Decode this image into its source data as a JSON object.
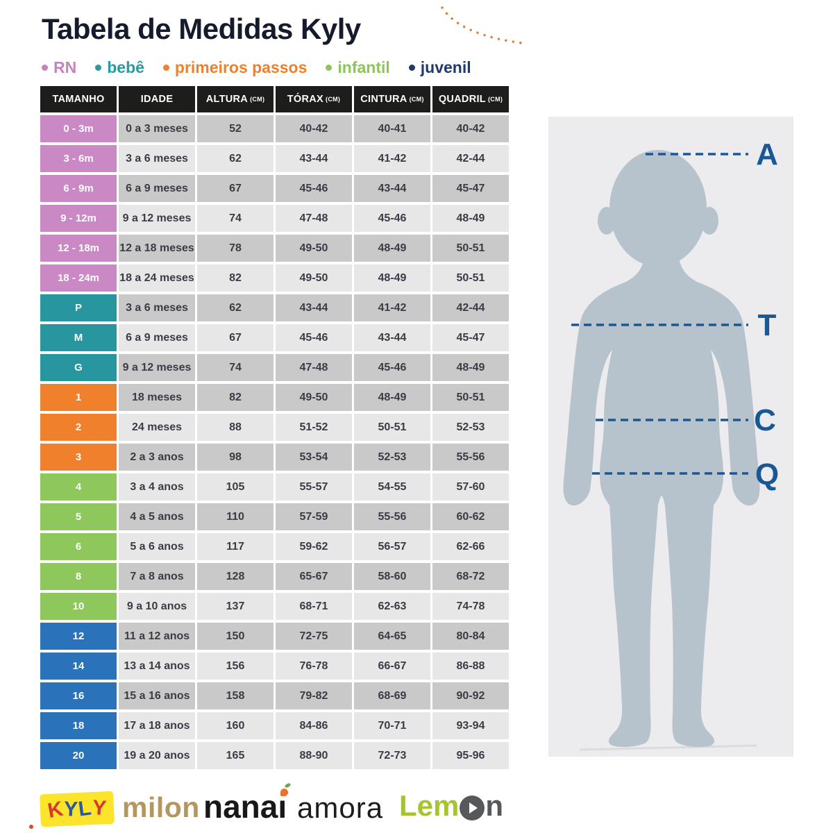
{
  "title": "Tabela de Medidas Kyly",
  "legend": [
    {
      "label": "RN",
      "color": "#c584bf"
    },
    {
      "label": "bebê",
      "color": "#2b99a2"
    },
    {
      "label": "primeiros passos",
      "color": "#f0802b"
    },
    {
      "label": "infantil",
      "color": "#8cc656"
    },
    {
      "label": "juvenil",
      "color": "#1d3a6b"
    }
  ],
  "table": {
    "headers": [
      {
        "label": "TAMANHO",
        "unit": ""
      },
      {
        "label": "IDADE",
        "unit": ""
      },
      {
        "label": "ALTURA",
        "unit": "(CM)"
      },
      {
        "label": "TÓRAX",
        "unit": "(CM)"
      },
      {
        "label": "CINTURA",
        "unit": "(CM)"
      },
      {
        "label": "QUADRIL",
        "unit": "(CM)"
      }
    ],
    "group_colors": {
      "rn": "#ca89c4",
      "bebe": "#27969f",
      "pp": "#f0802b",
      "infantil": "#8ec75b",
      "juvenil": "#2a73ba"
    },
    "rows": [
      {
        "size": "0 - 3m",
        "age": "0 a 3 meses",
        "altura": "52",
        "torax": "40-42",
        "cintura": "40-41",
        "quadril": "40-42",
        "group": "rn",
        "shade": "dark"
      },
      {
        "size": "3 - 6m",
        "age": "3 a 6 meses",
        "altura": "62",
        "torax": "43-44",
        "cintura": "41-42",
        "quadril": "42-44",
        "group": "rn",
        "shade": "light"
      },
      {
        "size": "6 - 9m",
        "age": "6 a 9 meses",
        "altura": "67",
        "torax": "45-46",
        "cintura": "43-44",
        "quadril": "45-47",
        "group": "rn",
        "shade": "dark"
      },
      {
        "size": "9 - 12m",
        "age": "9 a 12 meses",
        "altura": "74",
        "torax": "47-48",
        "cintura": "45-46",
        "quadril": "48-49",
        "group": "rn",
        "shade": "light"
      },
      {
        "size": "12 - 18m",
        "age": "12 a 18 meses",
        "altura": "78",
        "torax": "49-50",
        "cintura": "48-49",
        "quadril": "50-51",
        "group": "rn",
        "shade": "dark"
      },
      {
        "size": "18 - 24m",
        "age": "18 a 24 meses",
        "altura": "82",
        "torax": "49-50",
        "cintura": "48-49",
        "quadril": "50-51",
        "group": "rn",
        "shade": "light"
      },
      {
        "size": "P",
        "age": "3 a 6 meses",
        "altura": "62",
        "torax": "43-44",
        "cintura": "41-42",
        "quadril": "42-44",
        "group": "bebe",
        "shade": "dark"
      },
      {
        "size": "M",
        "age": "6 a 9 meses",
        "altura": "67",
        "torax": "45-46",
        "cintura": "43-44",
        "quadril": "45-47",
        "group": "bebe",
        "shade": "light"
      },
      {
        "size": "G",
        "age": "9 a 12 meses",
        "altura": "74",
        "torax": "47-48",
        "cintura": "45-46",
        "quadril": "48-49",
        "group": "bebe",
        "shade": "dark"
      },
      {
        "size": "1",
        "age": "18 meses",
        "altura": "82",
        "torax": "49-50",
        "cintura": "48-49",
        "quadril": "50-51",
        "group": "pp",
        "shade": "dark"
      },
      {
        "size": "2",
        "age": "24 meses",
        "altura": "88",
        "torax": "51-52",
        "cintura": "50-51",
        "quadril": "52-53",
        "group": "pp",
        "shade": "light"
      },
      {
        "size": "3",
        "age": "2 a 3 anos",
        "altura": "98",
        "torax": "53-54",
        "cintura": "52-53",
        "quadril": "55-56",
        "group": "pp",
        "shade": "dark"
      },
      {
        "size": "4",
        "age": "3 a 4 anos",
        "altura": "105",
        "torax": "55-57",
        "cintura": "54-55",
        "quadril": "57-60",
        "group": "infantil",
        "shade": "light"
      },
      {
        "size": "5",
        "age": "4 a 5 anos",
        "altura": "110",
        "torax": "57-59",
        "cintura": "55-56",
        "quadril": "60-62",
        "group": "infantil",
        "shade": "dark"
      },
      {
        "size": "6",
        "age": "5 a 6 anos",
        "altura": "117",
        "torax": "59-62",
        "cintura": "56-57",
        "quadril": "62-66",
        "group": "infantil",
        "shade": "light"
      },
      {
        "size": "8",
        "age": "7 a 8 anos",
        "altura": "128",
        "torax": "65-67",
        "cintura": "58-60",
        "quadril": "68-72",
        "group": "infantil",
        "shade": "dark"
      },
      {
        "size": "10",
        "age": "9 a 10 anos",
        "altura": "137",
        "torax": "68-71",
        "cintura": "62-63",
        "quadril": "74-78",
        "group": "infantil",
        "shade": "light"
      },
      {
        "size": "12",
        "age": "11 a 12 anos",
        "altura": "150",
        "torax": "72-75",
        "cintura": "64-65",
        "quadril": "80-84",
        "group": "juvenil",
        "shade": "dark"
      },
      {
        "size": "14",
        "age": "13 a 14 anos",
        "altura": "156",
        "torax": "76-78",
        "cintura": "66-67",
        "quadril": "86-88",
        "group": "juvenil",
        "shade": "light"
      },
      {
        "size": "16",
        "age": "15 a 16 anos",
        "altura": "158",
        "torax": "79-82",
        "cintura": "68-69",
        "quadril": "90-92",
        "group": "juvenil",
        "shade": "dark"
      },
      {
        "size": "18",
        "age": "17 a 18 anos",
        "altura": "160",
        "torax": "84-86",
        "cintura": "70-71",
        "quadril": "93-94",
        "group": "juvenil",
        "shade": "light"
      },
      {
        "size": "20",
        "age": "19 a 20 anos",
        "altura": "165",
        "torax": "88-90",
        "cintura": "72-73",
        "quadril": "95-96",
        "group": "juvenil",
        "shade": "light"
      }
    ]
  },
  "figure": {
    "labels": [
      "A",
      "T",
      "C",
      "Q"
    ],
    "panel_bg": "#ececee",
    "body_color": "#b7c3cc",
    "line_color": "#1a5795",
    "ground_color": "#d9dbdc"
  },
  "brands": {
    "kyly": {
      "text": "KYLY",
      "bg": "#fbe42a",
      "letter_colors": [
        "#d7392f",
        "#2b57a5",
        "#2b57a5",
        "#d7392f"
      ]
    },
    "milon": {
      "text": "milon",
      "color": "#b3975e"
    },
    "nanai": {
      "prefix": "nana",
      "i_char": "ı",
      "color": "#181818",
      "dot_color": "#e8742c",
      "leaf_color": "#6aa84f"
    },
    "amora": {
      "text": "amora",
      "color": "#1c1c1e"
    },
    "lemon": {
      "prefix": "Lem",
      "suffix": "n",
      "green": "#a6c42e",
      "dark": "#57585c"
    }
  },
  "decorations": {
    "arc_color": "#e07a36",
    "dot_color": "#dd4a2d"
  }
}
